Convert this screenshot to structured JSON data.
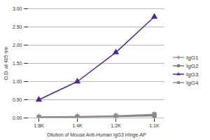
{
  "chart_data": {
    "type": "line",
    "x_label": "Dilution of Mouse Anti-Human IgG3 Hinge-AP",
    "y_label": "O.D. at 405 nm",
    "categories": [
      "1:8K",
      "1:4K",
      "1:2K",
      "1:1K"
    ],
    "series": [
      {
        "name": "IgG1",
        "color": "#9a9a9a",
        "marker": "diamond",
        "values": [
          0.02,
          0.03,
          0.05,
          0.08
        ]
      },
      {
        "name": "IgG2",
        "color": "#7a7a7a",
        "marker": "square",
        "values": [
          0.02,
          0.03,
          0.04,
          0.06
        ]
      },
      {
        "name": "IgG3",
        "color": "#4b2a8c",
        "marker": "triangle",
        "values": [
          0.5,
          1.0,
          1.8,
          2.78
        ]
      },
      {
        "name": "IgG4",
        "color": "#8c8c8c",
        "marker": "square",
        "values": [
          0.03,
          0.04,
          0.06,
          0.1
        ]
      }
    ],
    "ylim": [
      0,
      3.0
    ],
    "yticks": [
      {
        "value": 0,
        "label": "0.00"
      },
      {
        "value": 0.5,
        "label": "0.50"
      },
      {
        "value": 1.0,
        "label": "1.00"
      },
      {
        "value": 1.5,
        "label": "1.50"
      },
      {
        "value": 2.0,
        "label": "2.00"
      },
      {
        "value": 2.5,
        "label": "2.50"
      },
      {
        "value": 3.0,
        "label": "3.00"
      }
    ],
    "grid": true,
    "legend": "right"
  }
}
